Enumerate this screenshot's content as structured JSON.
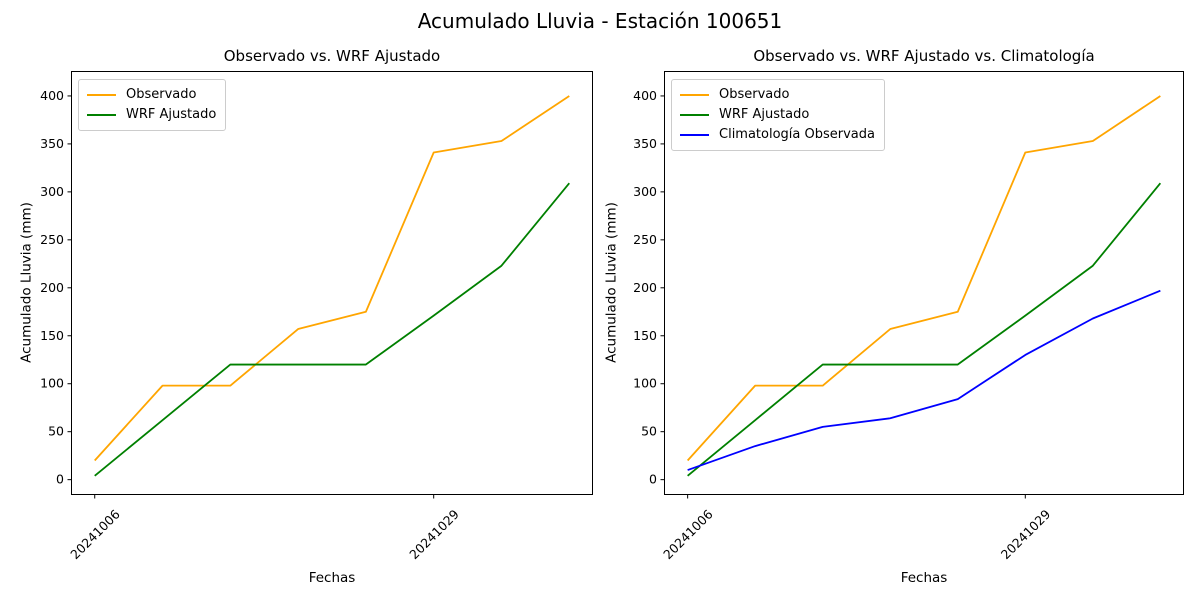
{
  "figure_title": "Acumulado Lluvia - Estación 100651",
  "chart_data": [
    {
      "type": "line",
      "title": "Observado vs. WRF Ajustado",
      "xlabel": "Fechas",
      "ylabel": "Acumulado Lluvia (mm)",
      "grid": false,
      "legend_position": "upper-left",
      "n_points": 8,
      "xlim": [
        -0.35,
        7.35
      ],
      "ylim": [
        -16,
        426
      ],
      "y_ticks": [
        0,
        50,
        100,
        150,
        200,
        250,
        300,
        350,
        400
      ],
      "x_ticks": [
        {
          "index": 0,
          "label": "20241006"
        },
        {
          "index": 5,
          "label": "20241029"
        }
      ],
      "series": [
        {
          "name": "Observado",
          "color": "#FFA500",
          "values": [
            20,
            98,
            98,
            157,
            175,
            341,
            353,
            400
          ]
        },
        {
          "name": "WRF Ajustado",
          "color": "#008000",
          "values": [
            4,
            62,
            120,
            120,
            120,
            171,
            223,
            309
          ]
        }
      ]
    },
    {
      "type": "line",
      "title": "Observado vs. WRF Ajustado vs. Climatología",
      "xlabel": "Fechas",
      "ylabel": "Acumulado Lluvia (mm)",
      "grid": false,
      "legend_position": "upper-left",
      "n_points": 8,
      "xlim": [
        -0.35,
        7.35
      ],
      "ylim": [
        -16,
        426
      ],
      "y_ticks": [
        0,
        50,
        100,
        150,
        200,
        250,
        300,
        350,
        400
      ],
      "x_ticks": [
        {
          "index": 0,
          "label": "20241006"
        },
        {
          "index": 5,
          "label": "20241029"
        }
      ],
      "series": [
        {
          "name": "Observado",
          "color": "#FFA500",
          "values": [
            20,
            98,
            98,
            157,
            175,
            341,
            353,
            400
          ]
        },
        {
          "name": "WRF Ajustado",
          "color": "#008000",
          "values": [
            4,
            62,
            120,
            120,
            120,
            171,
            223,
            309
          ]
        },
        {
          "name": "Climatología Observada",
          "color": "#0000FF",
          "values": [
            10,
            35,
            55,
            64,
            84,
            130,
            168,
            197
          ]
        }
      ]
    }
  ]
}
